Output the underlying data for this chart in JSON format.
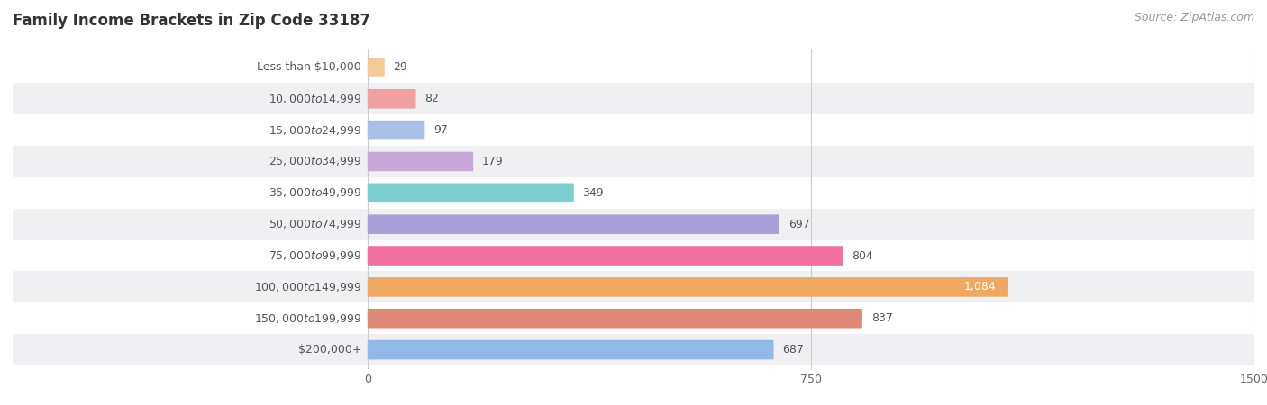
{
  "title": "Family Income Brackets in Zip Code 33187",
  "source": "Source: ZipAtlas.com",
  "categories": [
    "Less than $10,000",
    "$10,000 to $14,999",
    "$15,000 to $24,999",
    "$25,000 to $34,999",
    "$35,000 to $49,999",
    "$50,000 to $74,999",
    "$75,000 to $99,999",
    "$100,000 to $149,999",
    "$150,000 to $199,999",
    "$200,000+"
  ],
  "values": [
    29,
    82,
    97,
    179,
    349,
    697,
    804,
    1084,
    837,
    687
  ],
  "bar_colors": [
    "#f5c897",
    "#f0a0a0",
    "#a8c0e8",
    "#c8a8d8",
    "#7dcfcf",
    "#a8a0d8",
    "#f070a0",
    "#f0a860",
    "#e08878",
    "#90b8e8"
  ],
  "row_colors": [
    "#ffffff",
    "#f0f0f2"
  ],
  "xlim_left": -600,
  "xlim_right": 1500,
  "xticks": [
    0,
    750,
    1500
  ],
  "bar_height": 0.62,
  "bg_color": "#ffffff",
  "label_text_color": "#555555",
  "value_text_color": "#555555",
  "value_white_idx": 7,
  "title_fontsize": 12,
  "source_fontsize": 9,
  "cat_fontsize": 9,
  "value_fontsize": 9
}
